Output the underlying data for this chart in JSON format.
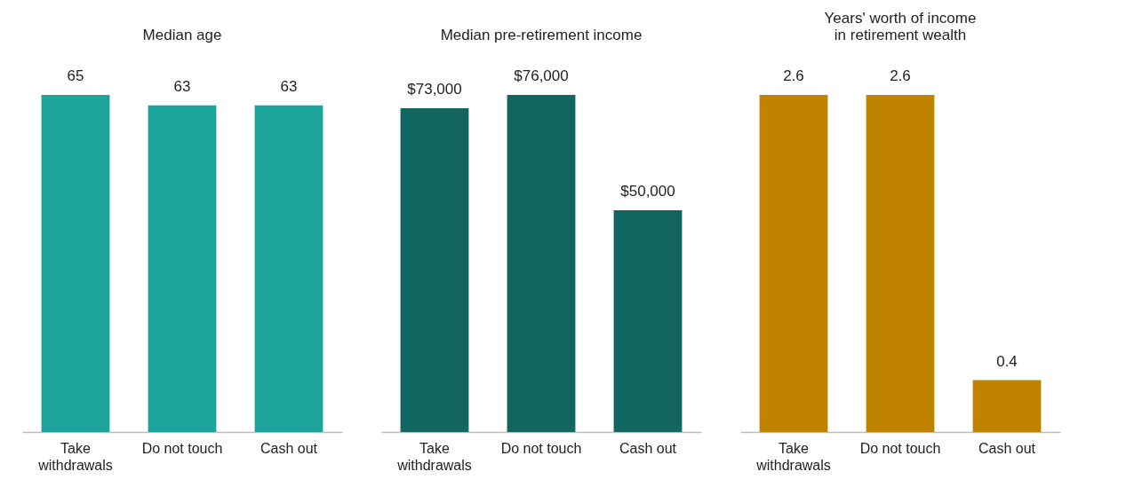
{
  "chart_data": [
    {
      "type": "bar",
      "title": "Median age",
      "categories": [
        "Take withdrawals",
        "Do not touch",
        "Cash out"
      ],
      "values": [
        65,
        63,
        63
      ],
      "color": "#1ca39b",
      "data_labels": true
    },
    {
      "type": "bar",
      "title": "Median pre-retirement income",
      "categories": [
        "Take withdrawals",
        "Do not touch",
        "Cash out"
      ],
      "values": [
        73000,
        76000,
        50000
      ],
      "value_labels": [
        "$73,000",
        "$76,000",
        "$50,000"
      ],
      "color": "#136560"
    },
    {
      "type": "bar",
      "title": "Years' worth of income\nin retirement wealth",
      "categories": [
        "Take withdrawals",
        "Do not touch",
        "Cash out"
      ],
      "values": [
        2.6,
        2.6,
        0.4
      ],
      "color": "#c08300",
      "data_labels": true
    }
  ]
}
